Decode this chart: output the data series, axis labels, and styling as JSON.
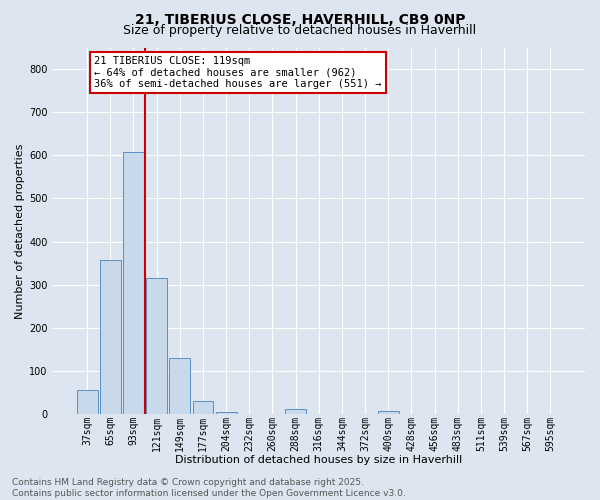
{
  "title_line1": "21, TIBERIUS CLOSE, HAVERHILL, CB9 0NP",
  "title_line2": "Size of property relative to detached houses in Haverhill",
  "xlabel": "Distribution of detached houses by size in Haverhill",
  "ylabel": "Number of detached properties",
  "categories": [
    "37sqm",
    "65sqm",
    "93sqm",
    "121sqm",
    "149sqm",
    "177sqm",
    "204sqm",
    "232sqm",
    "260sqm",
    "288sqm",
    "316sqm",
    "344sqm",
    "372sqm",
    "400sqm",
    "428sqm",
    "456sqm",
    "483sqm",
    "511sqm",
    "539sqm",
    "567sqm",
    "595sqm"
  ],
  "values": [
    55,
    358,
    608,
    315,
    130,
    30,
    5,
    0,
    0,
    12,
    0,
    0,
    0,
    8,
    0,
    0,
    0,
    0,
    0,
    0,
    0
  ],
  "bar_color": "#c9d9ec",
  "bar_edge_color": "#5a8fc0",
  "vline_pos": 2.5,
  "vline_color": "#cc0000",
  "annotation_text": "21 TIBERIUS CLOSE: 119sqm\n← 64% of detached houses are smaller (962)\n36% of semi-detached houses are larger (551) →",
  "annotation_box_facecolor": "#ffffff",
  "annotation_box_edgecolor": "#cc0000",
  "ylim": [
    0,
    850
  ],
  "yticks": [
    0,
    100,
    200,
    300,
    400,
    500,
    600,
    700,
    800
  ],
  "bg_color": "#dde6f0",
  "grid_color": "#ffffff",
  "footer_text": "Contains HM Land Registry data © Crown copyright and database right 2025.\nContains public sector information licensed under the Open Government Licence v3.0.",
  "title_fontsize": 10,
  "subtitle_fontsize": 9,
  "axis_label_fontsize": 8,
  "tick_fontsize": 7,
  "annotation_fontsize": 7.5,
  "footer_fontsize": 6.5
}
